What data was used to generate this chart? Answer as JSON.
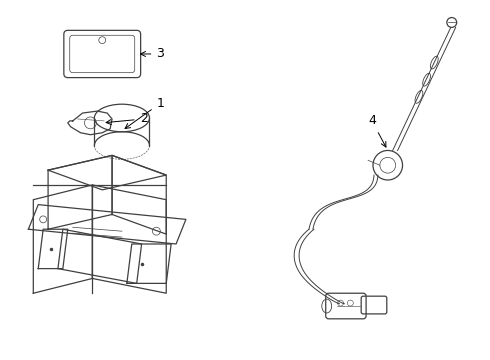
{
  "background_color": "#ffffff",
  "line_color": "#404040",
  "text_color": "#000000",
  "fig_width": 4.9,
  "fig_height": 3.6,
  "dpi": 100
}
